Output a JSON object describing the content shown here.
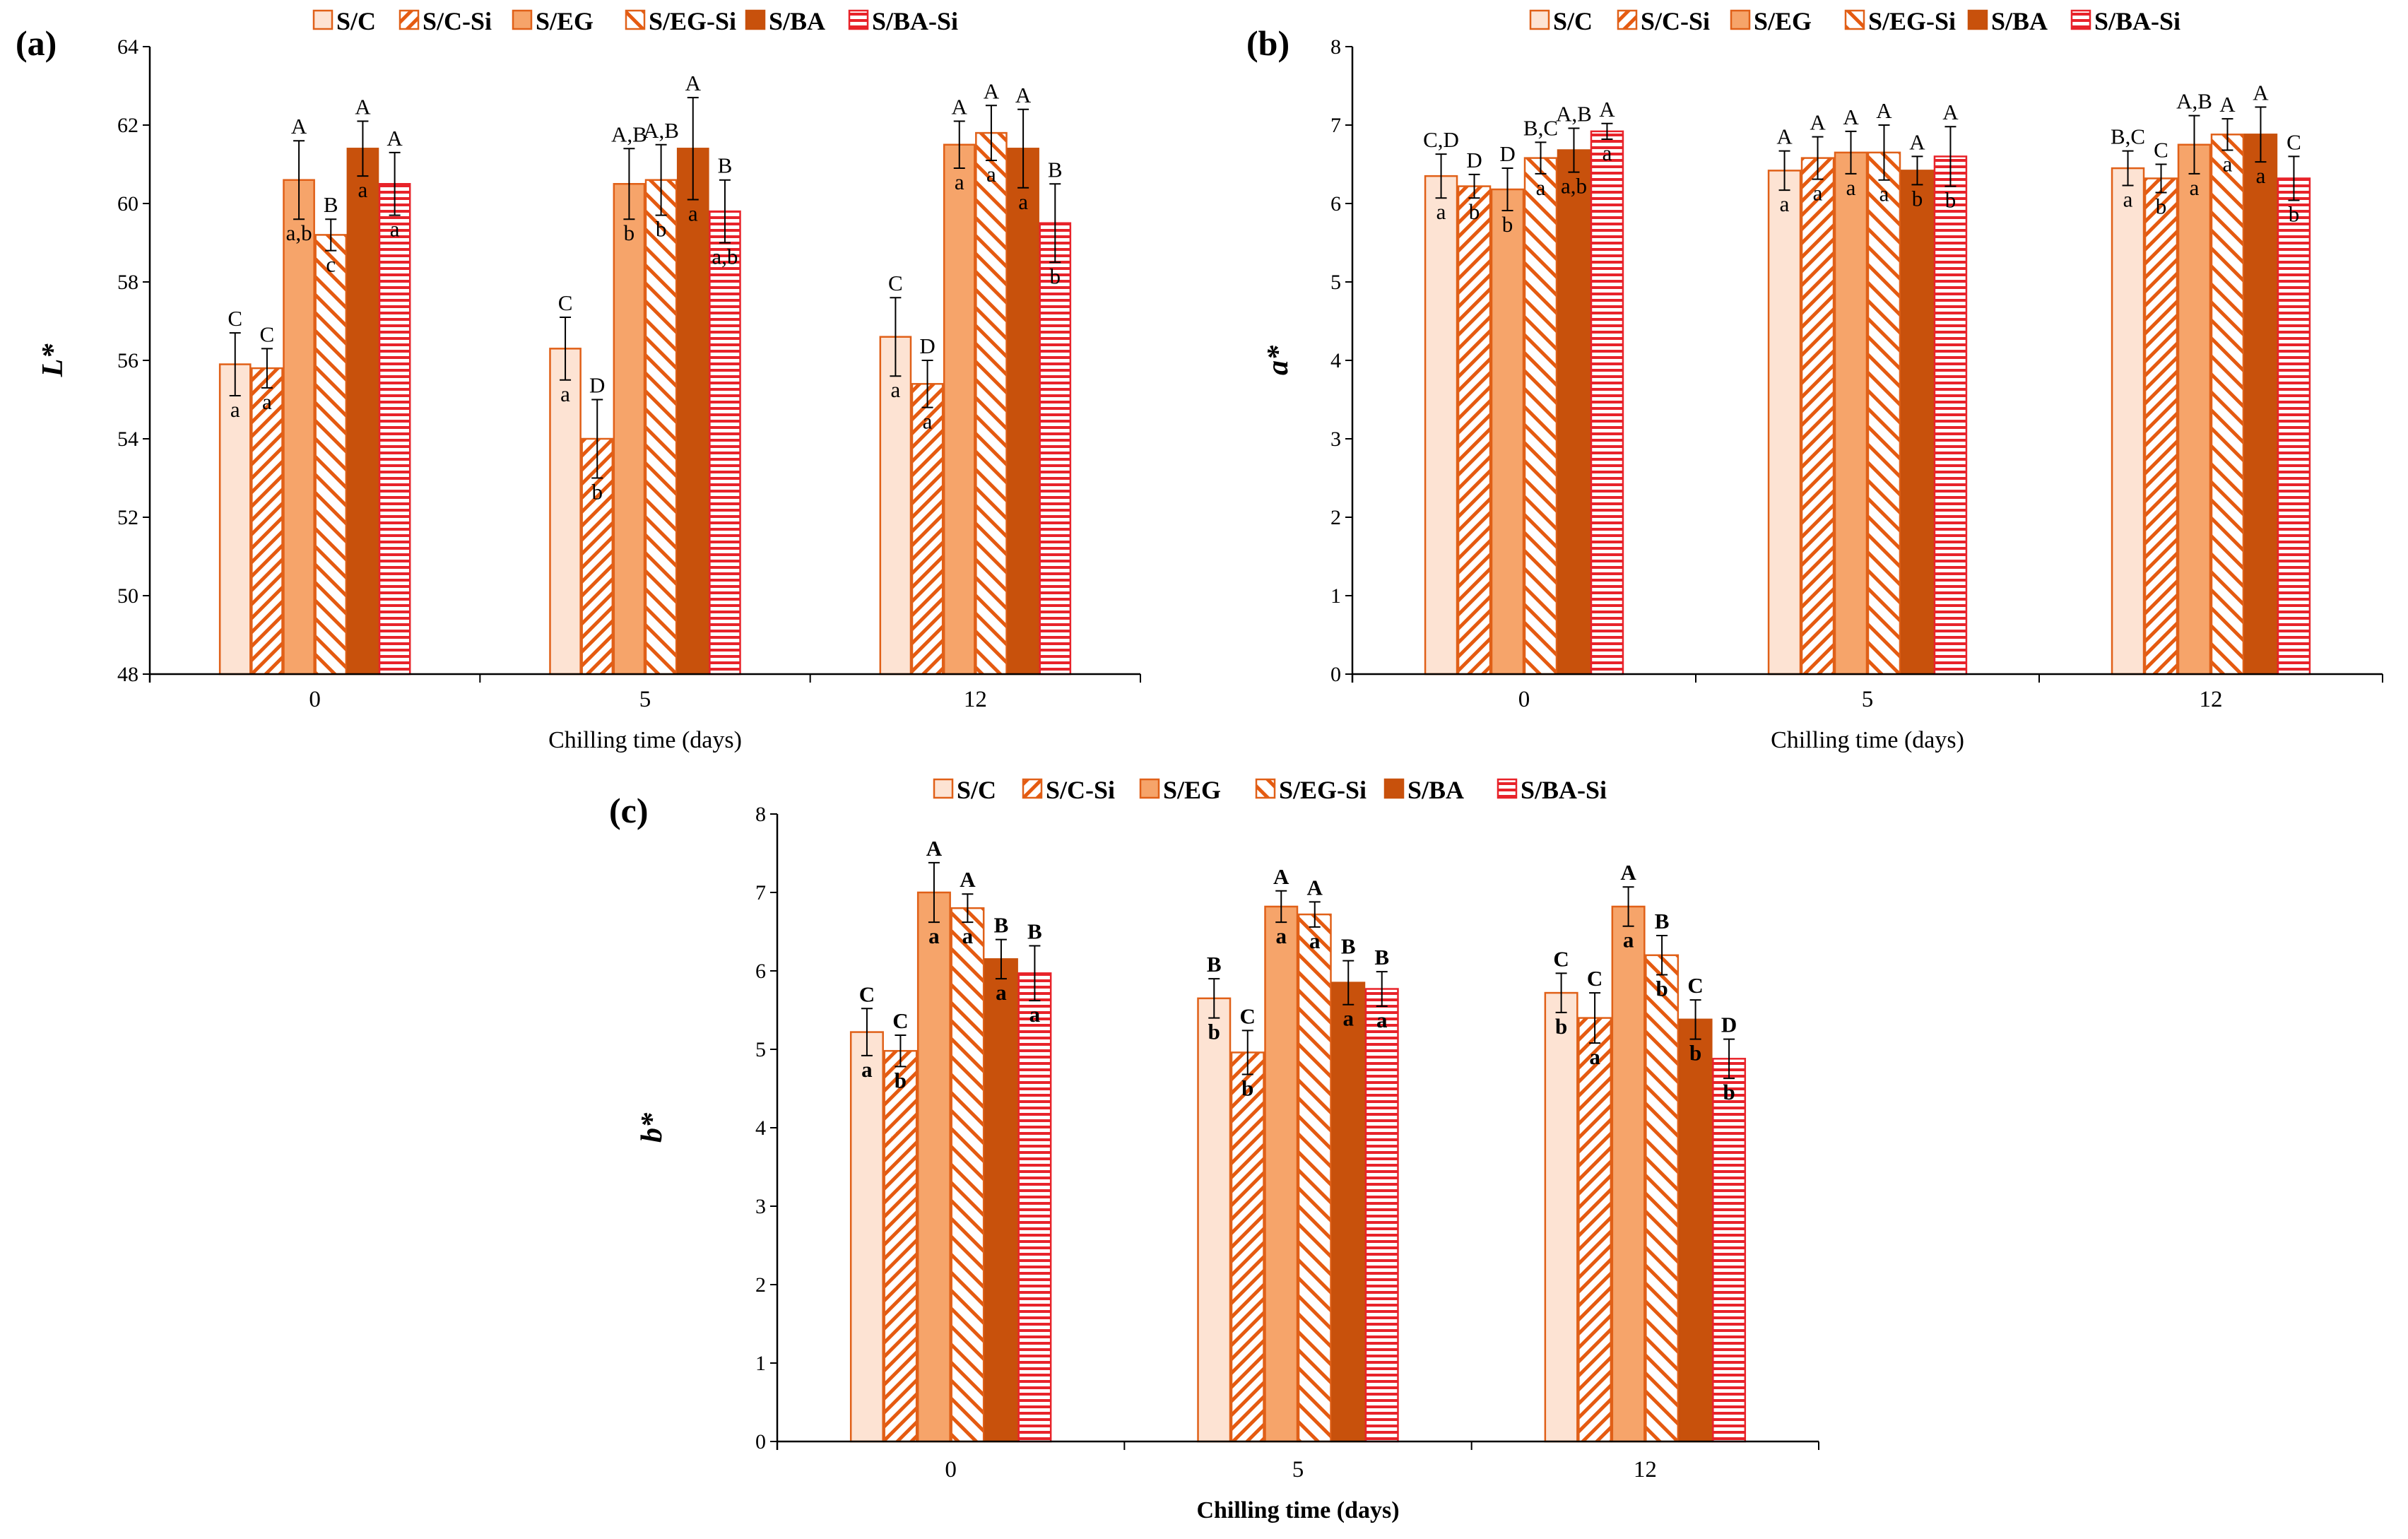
{
  "legend_series": [
    "S/C",
    "S/C-Si",
    "S/EG",
    "S/EG-Si",
    "S/BA",
    "S/BA-Si"
  ],
  "colors": {
    "light": "#fde3d3",
    "stripe": "#e55a10",
    "mid": "#f6a46a",
    "dark": "#c8510c",
    "red": "#e8232a",
    "edge": "#e06018",
    "axis": "#000000"
  },
  "chart_data": [
    {
      "panel": "(a)",
      "type": "bar",
      "xlabel": "Chilling time (days)",
      "ylabel": "L*",
      "ylim": [
        48,
        64
      ],
      "ytick_step": 2,
      "categories": [
        "0",
        "5",
        "12"
      ],
      "series": [
        {
          "name": "S/C",
          "values": [
            55.9,
            56.3,
            56.6
          ],
          "errors": [
            0.8,
            0.8,
            1.0
          ],
          "upper": [
            "C",
            "C",
            "C"
          ],
          "lower": [
            "a",
            "a",
            "a"
          ]
        },
        {
          "name": "S/C-Si",
          "values": [
            55.8,
            54.0,
            55.4
          ],
          "errors": [
            0.5,
            1.0,
            0.6
          ],
          "upper": [
            "C",
            "D",
            "D"
          ],
          "lower": [
            "a",
            "b",
            "a"
          ]
        },
        {
          "name": "S/EG",
          "values": [
            60.6,
            60.5,
            61.5
          ],
          "errors": [
            1.0,
            0.9,
            0.6
          ],
          "upper": [
            "A",
            "A,B",
            "A"
          ],
          "lower": [
            "a,b",
            "b",
            "a"
          ]
        },
        {
          "name": "S/EG-Si",
          "values": [
            59.2,
            60.6,
            61.8
          ],
          "errors": [
            0.4,
            0.9,
            0.7
          ],
          "upper": [
            "B",
            "A,B",
            "A"
          ],
          "lower": [
            "c",
            "b",
            "a"
          ]
        },
        {
          "name": "S/BA",
          "values": [
            61.4,
            61.4,
            61.4
          ],
          "errors": [
            0.7,
            1.3,
            1.0
          ],
          "upper": [
            "A",
            "A",
            "A"
          ],
          "lower": [
            "a",
            "a",
            "a"
          ]
        },
        {
          "name": "S/BA-Si",
          "values": [
            60.5,
            59.8,
            59.5
          ],
          "errors": [
            0.8,
            0.8,
            1.0
          ],
          "upper": [
            "A",
            "B",
            "B"
          ],
          "lower": [
            "a",
            "a,b",
            "b"
          ]
        }
      ]
    },
    {
      "panel": "(b)",
      "type": "bar",
      "xlabel": "Chilling time (days)",
      "ylabel": "a*",
      "ylim": [
        0,
        8
      ],
      "ytick_step": 1,
      "categories": [
        "0",
        "5",
        "12"
      ],
      "series": [
        {
          "name": "S/C",
          "values": [
            6.35,
            6.42,
            6.45
          ],
          "errors": [
            0.28,
            0.25,
            0.22
          ],
          "upper": [
            "C,D",
            "A",
            "B,C"
          ],
          "lower": [
            "a",
            "a",
            "a"
          ]
        },
        {
          "name": "S/C-Si",
          "values": [
            6.22,
            6.58,
            6.32
          ],
          "errors": [
            0.15,
            0.27,
            0.18
          ],
          "upper": [
            "D",
            "A",
            "C"
          ],
          "lower": [
            "b",
            "a",
            "b"
          ]
        },
        {
          "name": "S/EG",
          "values": [
            6.18,
            6.65,
            6.75
          ],
          "errors": [
            0.27,
            0.27,
            0.37
          ],
          "upper": [
            "D",
            "A",
            "A,B"
          ],
          "lower": [
            "b",
            "a",
            "a"
          ]
        },
        {
          "name": "S/EG-Si",
          "values": [
            6.58,
            6.65,
            6.88
          ],
          "errors": [
            0.2,
            0.35,
            0.2
          ],
          "upper": [
            "B,C",
            "A",
            "A"
          ],
          "lower": [
            "a",
            "a",
            "a"
          ]
        },
        {
          "name": "S/BA",
          "values": [
            6.68,
            6.42,
            6.88
          ],
          "errors": [
            0.28,
            0.18,
            0.35
          ],
          "upper": [
            "A,B",
            "A",
            "A"
          ],
          "lower": [
            "a,b",
            "b",
            "a"
          ]
        },
        {
          "name": "S/BA-Si",
          "values": [
            6.92,
            6.6,
            6.32
          ],
          "errors": [
            0.1,
            0.38,
            0.28
          ],
          "upper": [
            "A",
            "A",
            "C"
          ],
          "lower": [
            "a",
            "b",
            "b"
          ]
        }
      ]
    },
    {
      "panel": "(c)",
      "type": "bar",
      "xlabel": "Chilling time (days)",
      "ylabel": "b*",
      "ylim": [
        0,
        8
      ],
      "ytick_step": 1,
      "categories": [
        "0",
        "5",
        "12"
      ],
      "series": [
        {
          "name": "S/C",
          "values": [
            5.22,
            5.65,
            5.72
          ],
          "errors": [
            0.3,
            0.25,
            0.25
          ],
          "upper": [
            "C",
            "B",
            "C"
          ],
          "lower": [
            "a",
            "b",
            "b"
          ]
        },
        {
          "name": "S/C-Si",
          "values": [
            4.98,
            4.96,
            5.4
          ],
          "errors": [
            0.2,
            0.28,
            0.32
          ],
          "upper": [
            "C",
            "C",
            "C"
          ],
          "lower": [
            "b",
            "b",
            "a"
          ]
        },
        {
          "name": "S/EG",
          "values": [
            7.0,
            6.82,
            6.82
          ],
          "errors": [
            0.38,
            0.2,
            0.25
          ],
          "upper": [
            "A",
            "A",
            "A"
          ],
          "lower": [
            "a",
            "a",
            "a"
          ]
        },
        {
          "name": "S/EG-Si",
          "values": [
            6.8,
            6.72,
            6.2
          ],
          "errors": [
            0.18,
            0.16,
            0.25
          ],
          "upper": [
            "A",
            "A",
            "B"
          ],
          "lower": [
            "a",
            "a",
            "b"
          ]
        },
        {
          "name": "S/BA",
          "values": [
            6.15,
            5.85,
            5.38
          ],
          "errors": [
            0.25,
            0.28,
            0.25
          ],
          "upper": [
            "B",
            "B",
            "C"
          ],
          "lower": [
            "a",
            "a",
            "b"
          ]
        },
        {
          "name": "S/BA-Si",
          "values": [
            5.97,
            5.77,
            4.88
          ],
          "errors": [
            0.35,
            0.22,
            0.25
          ],
          "upper": [
            "B",
            "B",
            "D"
          ],
          "lower": [
            "a",
            "a",
            "b"
          ]
        }
      ]
    }
  ]
}
